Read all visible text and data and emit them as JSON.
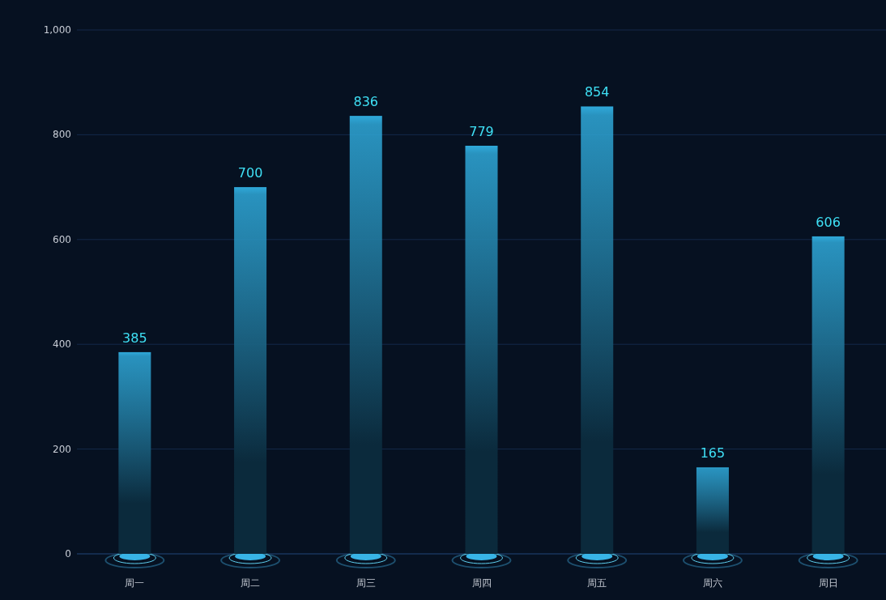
{
  "chart_data": {
    "type": "bar",
    "categories": [
      "周一",
      "周二",
      "周三",
      "周四",
      "周五",
      "周六",
      "周日"
    ],
    "values": [
      385,
      700,
      836,
      779,
      854,
      165,
      606
    ],
    "color": "#2fa9da",
    "ylim": [
      0,
      1000
    ],
    "yticks": [
      0,
      200,
      400,
      600,
      800,
      {
        "value": 1000,
        "label": "1,000"
      }
    ],
    "grid": "y",
    "data_labels": true
  }
}
